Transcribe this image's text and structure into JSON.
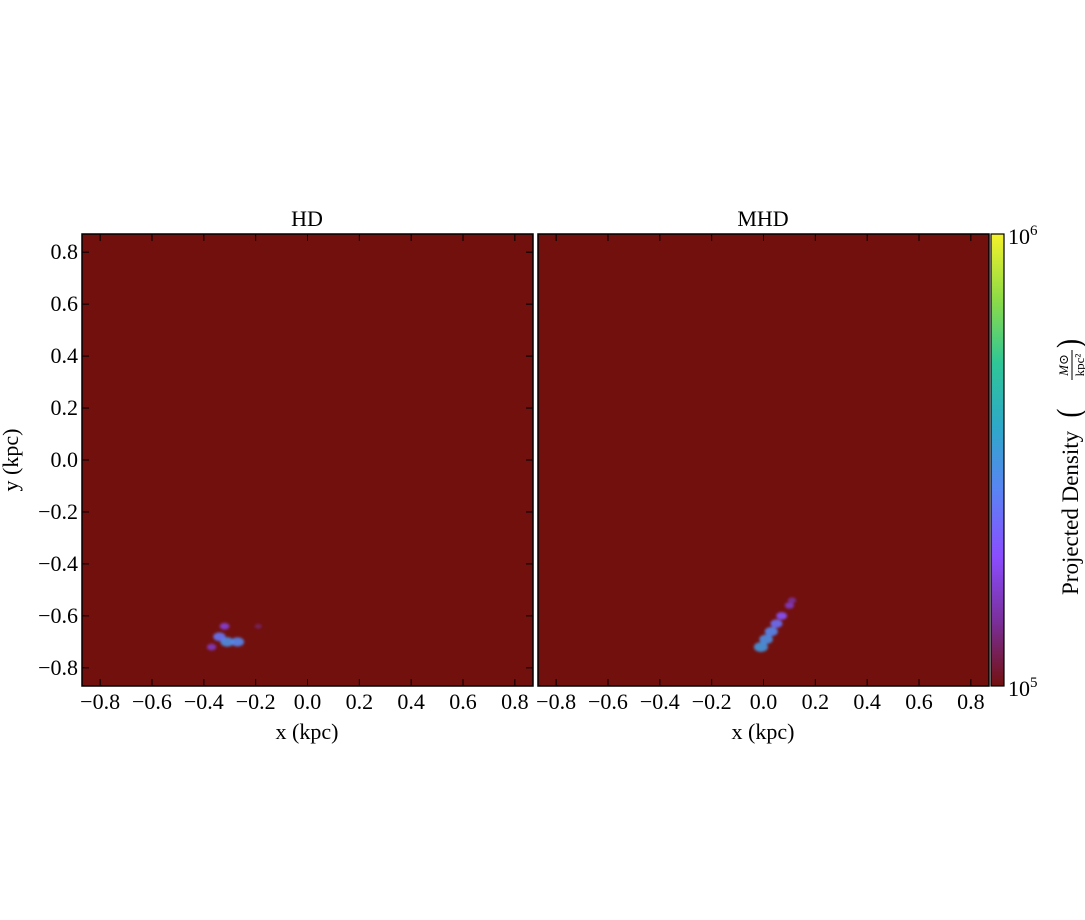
{
  "chart_data": [
    {
      "type": "heatmap",
      "title": "HD",
      "xlabel": "x (kpc)",
      "ylabel": "y (kpc)",
      "xlim": [
        -0.87,
        0.87
      ],
      "ylim": [
        -0.87,
        0.87
      ],
      "x_ticks": [
        "−0.8",
        "−0.6",
        "−0.4",
        "−0.2",
        "0.0",
        "0.2",
        "0.4",
        "0.6",
        "0.8"
      ],
      "y_ticks": [
        "−0.8",
        "−0.6",
        "−0.4",
        "−0.2",
        "0.0",
        "0.2",
        "0.4",
        "0.6",
        "0.8"
      ],
      "background_color": "#72100e",
      "features": [
        {
          "x": -0.31,
          "y": -0.7,
          "value": 300000
        },
        {
          "x": -0.34,
          "y": -0.68,
          "value": 250000
        },
        {
          "x": -0.27,
          "y": -0.7,
          "value": 280000
        },
        {
          "x": -0.37,
          "y": -0.72,
          "value": 160000
        },
        {
          "x": -0.32,
          "y": -0.64,
          "value": 170000
        },
        {
          "x": -0.19,
          "y": -0.64,
          "value": 120000
        }
      ]
    },
    {
      "type": "heatmap",
      "title": "MHD",
      "xlabel": "x (kpc)",
      "xlim": [
        -0.87,
        0.87
      ],
      "ylim": [
        -0.87,
        0.87
      ],
      "x_ticks": [
        "−0.8",
        "−0.6",
        "−0.4",
        "−0.2",
        "0.0",
        "0.2",
        "0.4",
        "0.6",
        "0.8"
      ],
      "background_color": "#72100e",
      "features": [
        {
          "x": -0.01,
          "y": -0.72,
          "value": 320000
        },
        {
          "x": 0.01,
          "y": -0.69,
          "value": 300000
        },
        {
          "x": 0.03,
          "y": -0.66,
          "value": 280000
        },
        {
          "x": 0.05,
          "y": -0.63,
          "value": 240000
        },
        {
          "x": 0.07,
          "y": -0.6,
          "value": 200000
        },
        {
          "x": 0.1,
          "y": -0.56,
          "value": 160000
        },
        {
          "x": 0.11,
          "y": -0.54,
          "value": 140000
        }
      ]
    }
  ],
  "colorbar": {
    "label": "Projected Density",
    "unit_numerator": "M⊙",
    "unit_denominator": "kpc²",
    "min_label_base": "10",
    "min_label_exp": "5",
    "max_label_base": "10",
    "max_label_exp": "6",
    "range": [
      100000,
      1000000
    ],
    "scale": "log",
    "colormap": "plasma",
    "colors": [
      "#72100e",
      "#7a2f9a",
      "#8a4dff",
      "#5b82f5",
      "#2ea8c9",
      "#2fc697",
      "#8edb45",
      "#f5f22a"
    ]
  }
}
